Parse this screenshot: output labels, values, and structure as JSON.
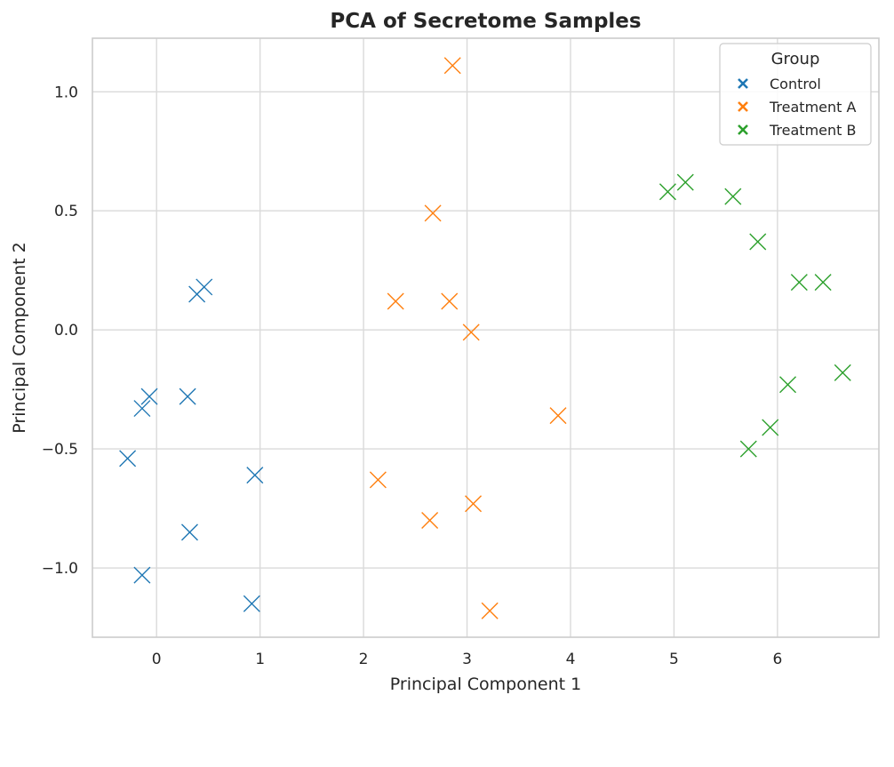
{
  "chart_data": {
    "type": "scatter",
    "title": "PCA of Secretome Samples",
    "xlabel": "Principal Component 1",
    "ylabel": "Principal Component 2",
    "xlim": [
      -0.62,
      6.98
    ],
    "ylim": [
      -1.291,
      1.225
    ],
    "xticks": [
      0,
      1,
      2,
      3,
      4,
      5,
      6
    ],
    "xtick_labels": [
      "0",
      "1",
      "2",
      "3",
      "4",
      "5",
      "6"
    ],
    "yticks": [
      1.0,
      0.5,
      0.0,
      -0.5,
      -1.0
    ],
    "ytick_labels": [
      "1.0",
      "0.5",
      "0.0",
      "−0.5",
      "−1.0"
    ],
    "grid": true,
    "marker": "x",
    "legend": {
      "title": "Group",
      "placement": "upper right"
    },
    "series": [
      {
        "name": "Control",
        "color": "#1f77b4",
        "points": [
          {
            "x": 0.46,
            "y": 0.18
          },
          {
            "x": 0.39,
            "y": 0.15
          },
          {
            "x": -0.07,
            "y": -0.28
          },
          {
            "x": 0.3,
            "y": -0.28
          },
          {
            "x": -0.14,
            "y": -0.33
          },
          {
            "x": -0.28,
            "y": -0.54
          },
          {
            "x": 0.95,
            "y": -0.61
          },
          {
            "x": 0.32,
            "y": -0.85
          },
          {
            "x": -0.14,
            "y": -1.03
          },
          {
            "x": 0.92,
            "y": -1.15
          }
        ]
      },
      {
        "name": "Treatment A",
        "color": "#ff7f0e",
        "points": [
          {
            "x": 2.86,
            "y": 1.11
          },
          {
            "x": 2.67,
            "y": 0.49
          },
          {
            "x": 2.31,
            "y": 0.12
          },
          {
            "x": 2.83,
            "y": 0.12
          },
          {
            "x": 3.04,
            "y": -0.01
          },
          {
            "x": 3.88,
            "y": -0.36
          },
          {
            "x": 2.14,
            "y": -0.63
          },
          {
            "x": 3.06,
            "y": -0.73
          },
          {
            "x": 2.64,
            "y": -0.8
          },
          {
            "x": 3.22,
            "y": -1.18
          }
        ]
      },
      {
        "name": "Treatment B",
        "color": "#2ca02c",
        "points": [
          {
            "x": 4.94,
            "y": 0.58
          },
          {
            "x": 5.11,
            "y": 0.62
          },
          {
            "x": 5.57,
            "y": 0.56
          },
          {
            "x": 5.81,
            "y": 0.37
          },
          {
            "x": 6.21,
            "y": 0.2
          },
          {
            "x": 6.44,
            "y": 0.2
          },
          {
            "x": 6.1,
            "y": -0.23
          },
          {
            "x": 6.63,
            "y": -0.18
          },
          {
            "x": 5.93,
            "y": -0.41
          },
          {
            "x": 5.72,
            "y": -0.5
          }
        ]
      }
    ]
  }
}
